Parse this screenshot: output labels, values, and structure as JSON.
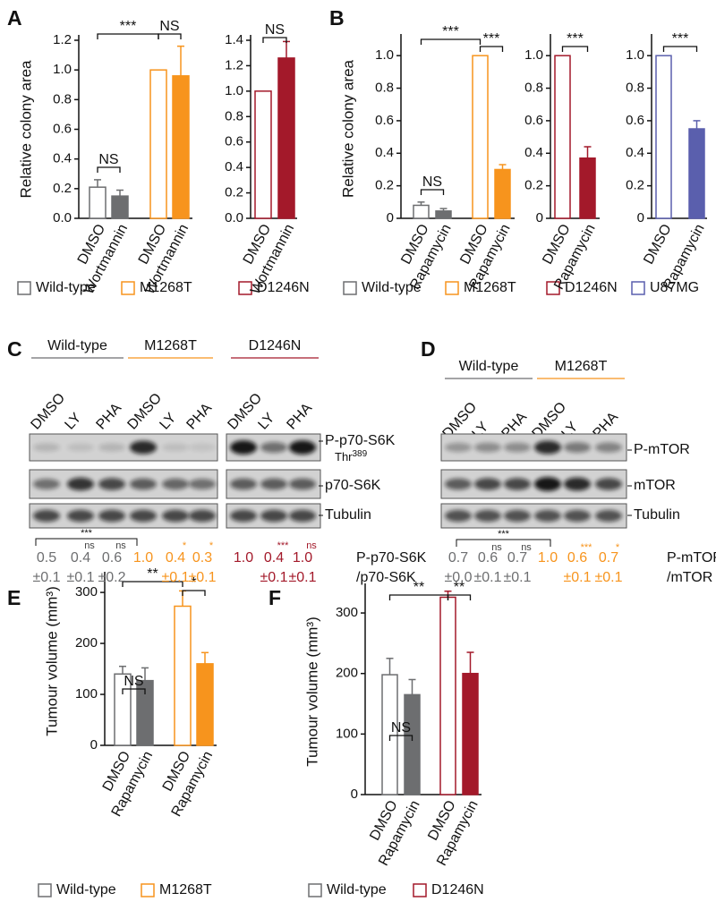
{
  "chart_data": [
    {
      "type": "bar",
      "panel": "A",
      "ylabel": "Relative colony area",
      "categories": [
        "DMSO",
        "Wortmannin",
        "DMSO",
        "Wortmannin"
      ],
      "values": [
        0.21,
        0.15,
        1.0,
        0.96
      ],
      "errors": [
        0.05,
        0.04,
        null,
        0.2
      ],
      "colors": [
        "#6d6e70",
        "#6d6e70",
        "#f7941d",
        "#f7941d"
      ],
      "filled": [
        false,
        true,
        false,
        true
      ],
      "ylim": [
        0,
        1.2
      ],
      "yticks": [
        {
          "value": 0,
          "label": "0.0"
        },
        0.2,
        0.4,
        0.6,
        0.8,
        {
          "value": 1,
          "label": "1.0"
        },
        1.2
      ],
      "significance": [
        "***",
        "NS",
        "NS"
      ],
      "legend": [
        {
          "name": "Wild-type",
          "color": "#6d6e70"
        },
        {
          "name": "M1268T",
          "color": "#f7941d"
        },
        {
          "name": "D1246N",
          "color": "#a3192a"
        }
      ]
    },
    {
      "type": "bar",
      "categories": [
        "DMSO",
        "Wortmannin"
      ],
      "values": [
        1.0,
        1.26
      ],
      "errors": [
        null,
        0.13
      ],
      "colors": [
        "#a3192a",
        "#a3192a"
      ],
      "filled": [
        false,
        true
      ],
      "ylim": [
        0,
        1.4
      ],
      "yticks": [
        {
          "value": 0,
          "label": "0.0"
        },
        0.2,
        0.4,
        0.6,
        0.8,
        {
          "value": 1,
          "label": "1.0"
        },
        1.2,
        1.4
      ],
      "significance": [
        "NS"
      ]
    },
    {
      "type": "bar",
      "panel": "B",
      "ylabel": "Relative colony area",
      "categories": [
        "DMSO",
        "Rapamycin",
        "DMSO",
        "Rapamycin"
      ],
      "values": [
        0.08,
        0.045,
        1.0,
        0.3
      ],
      "errors": [
        0.02,
        0.015,
        null,
        0.03
      ],
      "colors": [
        "#6d6e70",
        "#6d6e70",
        "#f7941d",
        "#f7941d"
      ],
      "filled": [
        false,
        true,
        false,
        true
      ],
      "ylim": [
        0,
        1.1
      ],
      "yticks": [
        0,
        0.2,
        0.4,
        0.6,
        0.8,
        {
          "value": 1,
          "label": "1.0"
        }
      ],
      "significance": [
        "***",
        "***",
        "NS"
      ],
      "legend": [
        {
          "name": "Wild-type",
          "color": "#6d6e70"
        },
        {
          "name": "M1268T",
          "color": "#f7941d"
        },
        {
          "name": "D1246N",
          "color": "#a3192a"
        },
        {
          "name": "U87MG",
          "color": "#5a5fad"
        }
      ]
    },
    {
      "type": "bar",
      "categories": [
        "DMSO",
        "Rapamycin"
      ],
      "values": [
        1.0,
        0.37
      ],
      "errors": [
        null,
        0.07
      ],
      "colors": [
        "#a3192a",
        "#a3192a"
      ],
      "filled": [
        false,
        true
      ],
      "ylim": [
        0,
        1.1
      ],
      "yticks": [
        0,
        0.2,
        0.4,
        0.6,
        0.8,
        {
          "value": 1,
          "label": "1.0"
        }
      ],
      "significance": [
        "***"
      ]
    },
    {
      "type": "bar",
      "categories": [
        "DMSO",
        "Rapamycin"
      ],
      "values": [
        1.0,
        0.55
      ],
      "errors": [
        null,
        0.05
      ],
      "colors": [
        "#5a5fad",
        "#5a5fad"
      ],
      "filled": [
        false,
        true
      ],
      "ylim": [
        0,
        1.1
      ],
      "yticks": [
        0,
        0.2,
        0.4,
        0.6,
        0.8,
        {
          "value": 1,
          "label": "1.0"
        }
      ],
      "significance": [
        "***"
      ]
    },
    {
      "type": "bar",
      "panel": "E",
      "ylabel": "Tumour volume (mm³)",
      "categories": [
        "DMSO",
        "Rapamycin",
        "DMSO",
        "Rapamycin"
      ],
      "values": [
        140,
        127,
        273,
        160
      ],
      "errors": [
        15,
        25,
        30,
        22
      ],
      "colors": [
        "#6d6e70",
        "#6d6e70",
        "#f7941d",
        "#f7941d"
      ],
      "filled": [
        false,
        true,
        false,
        true
      ],
      "ylim": [
        0,
        330
      ],
      "yticks": [
        0,
        100,
        200,
        300
      ],
      "significance": [
        "**",
        "*",
        "NS"
      ],
      "legend": [
        {
          "name": "Wild-type",
          "color": "#6d6e70"
        },
        {
          "name": "M1268T",
          "color": "#f7941d"
        }
      ]
    },
    {
      "type": "bar",
      "panel": "F",
      "ylabel": "Tumour volume (mm³)",
      "categories": [
        "DMSO",
        "Rapamycin",
        "DMSO",
        "Rapamycin"
      ],
      "values": [
        198,
        165,
        326,
        200
      ],
      "errors": [
        27,
        25,
        10,
        35
      ],
      "colors": [
        "#6d6e70",
        "#6d6e70",
        "#a3192a",
        "#a3192a"
      ],
      "filled": [
        false,
        true,
        false,
        true
      ],
      "ylim": [
        0,
        340
      ],
      "yticks": [
        0,
        100,
        200,
        300
      ],
      "significance": [
        "**",
        "**",
        "NS"
      ],
      "legend": [
        {
          "name": "Wild-type",
          "color": "#6d6e70"
        },
        {
          "name": "D1246N",
          "color": "#a3192a"
        }
      ]
    }
  ],
  "blots": [
    {
      "panel": "C",
      "groups": [
        {
          "name": "Wild-type",
          "color": "#6d6e70",
          "lanes": [
            "DMSO",
            "LY",
            "PHA"
          ],
          "ratios": [
            "0.5",
            "0.4",
            "0.6"
          ],
          "errors": [
            "±0.1",
            "±0.1",
            "±0.2"
          ],
          "significance": [
            null,
            "ns",
            "ns"
          ]
        },
        {
          "name": "M1268T",
          "color": "#f7941d",
          "lanes": [
            "DMSO",
            "LY",
            "PHA"
          ],
          "ratios": [
            "1.0",
            "0.4",
            "0.3"
          ],
          "errors": [
            null,
            "±0.1",
            "±0.1"
          ],
          "significance": [
            null,
            "*",
            "*"
          ]
        },
        {
          "name": "D1246N",
          "color": "#a3192a",
          "lanes": [
            "DMSO",
            "LY",
            "PHA"
          ],
          "ratios": [
            "1.0",
            "0.4",
            "1.0"
          ],
          "errors": [
            null,
            "±0.1",
            "±0.1"
          ],
          "significance": [
            null,
            "***",
            "ns"
          ]
        }
      ],
      "rows": [
        {
          "name": "P-p70-S6K",
          "site": "Thr",
          "site_number": "389"
        },
        {
          "name": "p70-S6K"
        },
        {
          "name": "Tubulin"
        }
      ],
      "bracket": "***",
      "ratio_label": [
        "P-p70-S6K",
        "/p70-S6K"
      ]
    },
    {
      "panel": "D",
      "groups": [
        {
          "name": "Wild-type",
          "color": "#6d6e70",
          "lanes": [
            "DMSO",
            "LY",
            "PHA"
          ],
          "ratios": [
            "0.7",
            "0.6",
            "0.7"
          ],
          "errors": [
            "±0.0",
            "±0.1",
            "±0.1"
          ],
          "significance": [
            null,
            "ns",
            "ns"
          ]
        },
        {
          "name": "M1268T",
          "color": "#f7941d",
          "lanes": [
            "DMSO",
            "LY",
            "PHA"
          ],
          "ratios": [
            "1.0",
            "0.6",
            "0.7"
          ],
          "errors": [
            null,
            "±0.1",
            "±0.1"
          ],
          "significance": [
            null,
            "***",
            "*"
          ]
        }
      ],
      "rows": [
        {
          "name": "P-mTOR"
        },
        {
          "name": "mTOR"
        },
        {
          "name": "Tubulin"
        }
      ],
      "bracket": "***",
      "ratio_label": [
        "P-mTOR",
        "/mTOR"
      ]
    }
  ]
}
